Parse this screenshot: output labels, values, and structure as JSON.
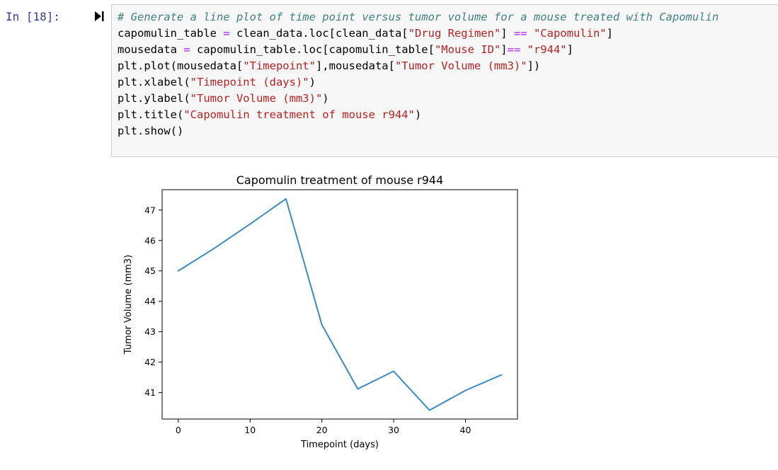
{
  "cell": {
    "prompt": "In [18]:",
    "code_lines": [
      [
        {
          "t": "# Generate a line plot of time point versus tumor volume for a mouse treated with Capomulin",
          "c": "cm-comment"
        }
      ],
      [
        {
          "t": "capomulin_table "
        },
        {
          "t": "=",
          "c": "cm-op"
        },
        {
          "t": " clean_data.loc[clean_data["
        },
        {
          "t": "\"Drug Regimen\"",
          "c": "cm-string"
        },
        {
          "t": "] "
        },
        {
          "t": "==",
          "c": "cm-op"
        },
        {
          "t": " "
        },
        {
          "t": "\"Capomulin\"",
          "c": "cm-string"
        },
        {
          "t": "]"
        }
      ],
      [
        {
          "t": "mousedata "
        },
        {
          "t": "=",
          "c": "cm-op"
        },
        {
          "t": " capomulin_table.loc[capomulin_table["
        },
        {
          "t": "\"Mouse ID\"",
          "c": "cm-string"
        },
        {
          "t": "]"
        },
        {
          "t": "==",
          "c": "cm-op"
        },
        {
          "t": " "
        },
        {
          "t": "\"r944\"",
          "c": "cm-string"
        },
        {
          "t": "]"
        }
      ],
      [
        {
          "t": "plt.plot(mousedata["
        },
        {
          "t": "\"Timepoint\"",
          "c": "cm-string"
        },
        {
          "t": "],mousedata["
        },
        {
          "t": "\"Tumor Volume (mm3)\"",
          "c": "cm-string"
        },
        {
          "t": "])"
        }
      ],
      [
        {
          "t": "plt.xlabel("
        },
        {
          "t": "\"Timepoint (days)\"",
          "c": "cm-string"
        },
        {
          "t": ")"
        }
      ],
      [
        {
          "t": "plt.ylabel("
        },
        {
          "t": "\"Tumor Volume (mm3)\"",
          "c": "cm-string"
        },
        {
          "t": ")"
        }
      ],
      [
        {
          "t": "plt.title("
        },
        {
          "t": "\"Capomulin treatment of mouse r944\"",
          "c": "cm-string"
        },
        {
          "t": ")"
        }
      ],
      [
        {
          "t": "plt.show()"
        }
      ]
    ]
  },
  "colors": {
    "line": "#3b8ac4",
    "comment": "#408080",
    "string": "#ba2121",
    "operator": "#aa22ff",
    "prompt": "#303f9f"
  },
  "icons": {
    "run": "step-run-icon"
  },
  "chart_data": {
    "type": "line",
    "title": "Capomulin treatment of mouse r944",
    "xlabel": "Timepoint (days)",
    "ylabel": "Tumor Volume (mm3)",
    "x": [
      0,
      5,
      10,
      15,
      20,
      25,
      30,
      35,
      40,
      45
    ],
    "y": [
      45.0,
      45.74,
      46.54,
      47.37,
      43.23,
      41.12,
      41.7,
      40.42,
      41.07,
      41.58
    ],
    "xlim": [
      -2.25,
      47.25
    ],
    "ylim": [
      40.13,
      47.67
    ],
    "xticks": [
      0,
      10,
      20,
      30,
      40
    ],
    "yticks": [
      41,
      42,
      43,
      44,
      45,
      46,
      47
    ],
    "grid": false,
    "legend": "none"
  }
}
